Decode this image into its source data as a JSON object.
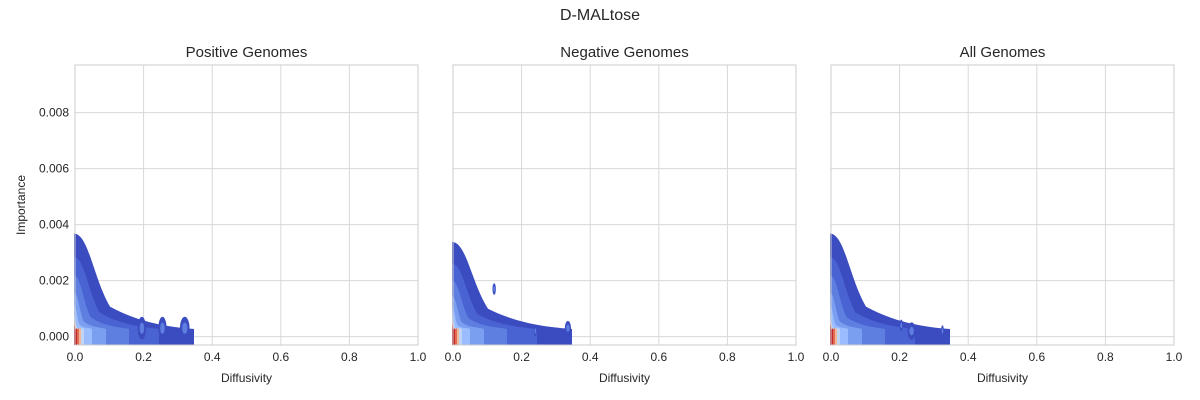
{
  "figure": {
    "title": "D-MALtose"
  },
  "colors": {
    "grid": "#d9d9d9",
    "spine": "#cccccc",
    "text": "#262626",
    "kde_levels": [
      "#3b4cc0",
      "#4a63d3",
      "#5f7fe0",
      "#7b9ff0",
      "#9bbcff",
      "#c0d4f5",
      "#f0b79a",
      "#e36b52",
      "#c0282d"
    ]
  },
  "chart_data": [
    {
      "type": "kde-contour",
      "title": "Positive Genomes",
      "xlabel": "Diffusivity",
      "ylabel": "Importance",
      "xlim": [
        0.0,
        1.0
      ],
      "ylim": [
        -0.0003,
        0.0097
      ],
      "xticks": [
        "0.0",
        "0.2",
        "0.4",
        "0.6",
        "0.8",
        "1.0"
      ],
      "yticks": [
        "0.000",
        "0.002",
        "0.004",
        "0.006",
        "0.008"
      ],
      "grid": true,
      "hotspot": {
        "x": 0.005,
        "y": 0.0002
      },
      "max_extent_y": 0.0035,
      "blobs": [
        {
          "x": 0.195,
          "y": 0.0003,
          "rx": 0.012,
          "ry": 0.0003
        },
        {
          "x": 0.255,
          "y": 0.0003,
          "rx": 0.012,
          "ry": 0.0003
        },
        {
          "x": 0.32,
          "y": 0.0003,
          "rx": 0.014,
          "ry": 0.0003
        }
      ]
    },
    {
      "type": "kde-contour",
      "title": "Negative Genomes",
      "xlabel": "Diffusivity",
      "ylabel": "",
      "xlim": [
        0.0,
        1.0
      ],
      "ylim": [
        -0.0003,
        0.0097
      ],
      "xticks": [
        "0.0",
        "0.2",
        "0.4",
        "0.6",
        "0.8",
        "1.0"
      ],
      "yticks": [],
      "grid": true,
      "hotspot": {
        "x": 0.005,
        "y": 0.0002
      },
      "max_extent_y": 0.0032,
      "blobs": [
        {
          "x": 0.12,
          "y": 0.0017,
          "rx": 0.005,
          "ry": 0.0001
        },
        {
          "x": 0.24,
          "y": 0.0002,
          "rx": 0.004,
          "ry": 5e-05
        },
        {
          "x": 0.335,
          "y": 0.0003,
          "rx": 0.009,
          "ry": 0.00015
        }
      ]
    },
    {
      "type": "kde-contour",
      "title": "All Genomes",
      "xlabel": "Diffusivity",
      "ylabel": "",
      "xlim": [
        0.0,
        1.0
      ],
      "ylim": [
        -0.0003,
        0.0097
      ],
      "xticks": [
        "0.0",
        "0.2",
        "0.4",
        "0.6",
        "0.8",
        "1.0"
      ],
      "yticks": [],
      "grid": true,
      "hotspot": {
        "x": 0.005,
        "y": 0.0002
      },
      "max_extent_y": 0.0035,
      "blobs": [
        {
          "x": 0.205,
          "y": 0.0004,
          "rx": 0.005,
          "ry": 0.0001
        },
        {
          "x": 0.235,
          "y": 0.0002,
          "rx": 0.012,
          "ry": 0.0002
        },
        {
          "x": 0.325,
          "y": 0.0002,
          "rx": 0.004,
          "ry": 0.0001
        }
      ]
    }
  ]
}
